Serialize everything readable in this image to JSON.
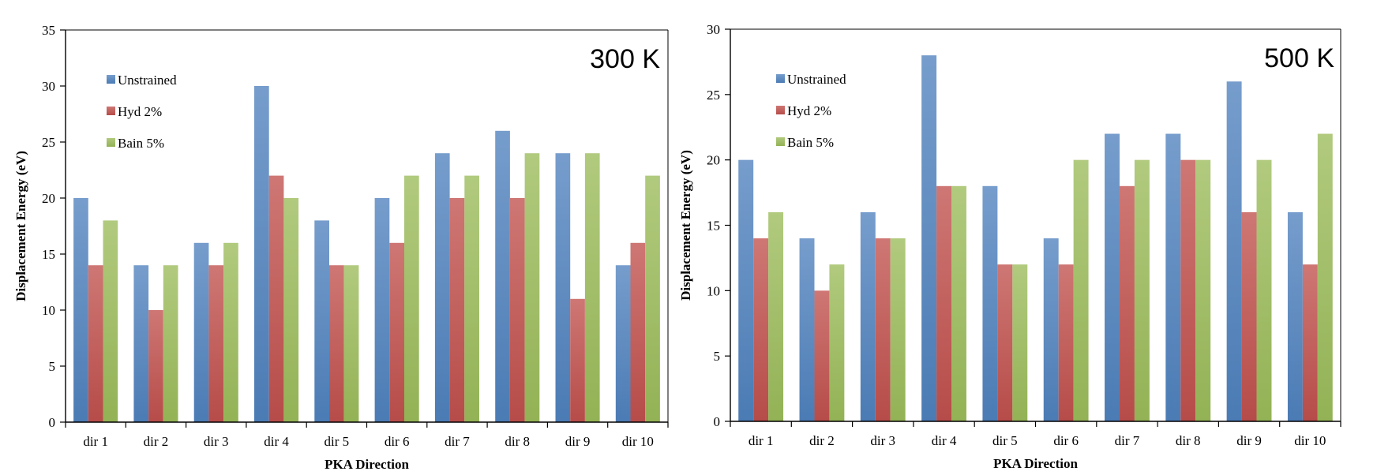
{
  "colors": {
    "Unstrained": "#4f81bd",
    "Hyd 2%": "#c0504d",
    "Bain 5%": "#9bbb59"
  },
  "chart_data": [
    {
      "type": "bar",
      "title": "300 K",
      "xlabel": "PKA Direction",
      "ylabel": "Displacement Energy (eV)",
      "ylim": [
        0,
        35
      ],
      "yticks": [
        0,
        5,
        10,
        15,
        20,
        25,
        30,
        35
      ],
      "legend_position": "top-left",
      "grid": false,
      "categories": [
        "dir 1",
        "dir 2",
        "dir 3",
        "dir 4",
        "dir 5",
        "dir 6",
        "dir 7",
        "dir 8",
        "dir 9",
        "dir 10"
      ],
      "series": [
        {
          "name": "Unstrained",
          "values": [
            20,
            14,
            16,
            30,
            18,
            20,
            24,
            26,
            24,
            14
          ]
        },
        {
          "name": "Hyd 2%",
          "values": [
            14,
            10,
            14,
            22,
            14,
            16,
            20,
            20,
            11,
            16
          ]
        },
        {
          "name": "Bain 5%",
          "values": [
            18,
            14,
            16,
            20,
            14,
            22,
            22,
            24,
            24,
            22
          ]
        }
      ]
    },
    {
      "type": "bar",
      "title": "500 K",
      "xlabel": "PKA Direction",
      "ylabel": "Displacement Energy (eV)",
      "ylim": [
        0,
        30
      ],
      "yticks": [
        0,
        5,
        10,
        15,
        20,
        25,
        30
      ],
      "legend_position": "top-left",
      "grid": false,
      "categories": [
        "dir 1",
        "dir 2",
        "dir 3",
        "dir 4",
        "dir 5",
        "dir 6",
        "dir 7",
        "dir 8",
        "dir 9",
        "dir 10"
      ],
      "series": [
        {
          "name": "Unstrained",
          "values": [
            20,
            14,
            16,
            28,
            18,
            14,
            22,
            22,
            26,
            16
          ]
        },
        {
          "name": "Hyd 2%",
          "values": [
            14,
            10,
            14,
            18,
            12,
            12,
            18,
            20,
            16,
            12
          ]
        },
        {
          "name": "Bain 5%",
          "values": [
            16,
            12,
            14,
            18,
            12,
            20,
            20,
            20,
            20,
            22
          ]
        }
      ]
    }
  ]
}
